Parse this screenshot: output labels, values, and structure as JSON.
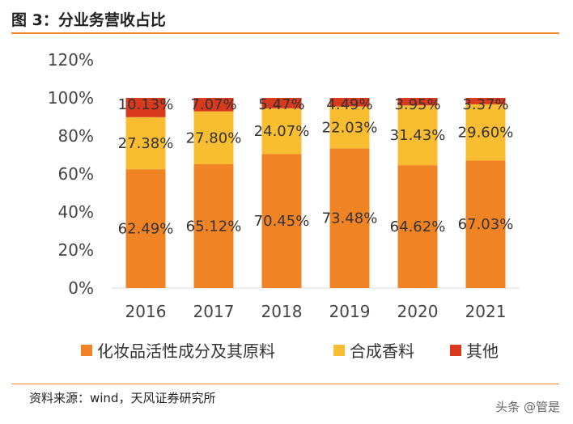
{
  "header": {
    "title": "图 3：分业务营收占比"
  },
  "footer": {
    "source": "资料来源：wind，天风证券研究所",
    "watermark": "头条 @管是"
  },
  "colors": {
    "accent": "#ef8a2c",
    "gridline": "#d9d9d9"
  },
  "chart_data": {
    "type": "bar",
    "stacked": true,
    "categories": [
      "2016",
      "2017",
      "2018",
      "2019",
      "2020",
      "2021"
    ],
    "y_ticks": [
      "0%",
      "20%",
      "40%",
      "60%",
      "80%",
      "100%",
      "120%"
    ],
    "ylim": [
      0,
      120
    ],
    "legend_position": "bottom",
    "series": [
      {
        "name": "化妆品活性成分及其原料",
        "color": "#f08424",
        "values": [
          62.49,
          65.12,
          70.45,
          73.48,
          64.62,
          67.03
        ],
        "labels": [
          "62.49%",
          "65.12%",
          "70.45%",
          "73.48%",
          "64.62%",
          "67.03%"
        ]
      },
      {
        "name": "合成香料",
        "color": "#f8bd30",
        "values": [
          27.38,
          27.8,
          24.07,
          22.03,
          31.43,
          29.6
        ],
        "labels": [
          "27.38%",
          "27.80%",
          "24.07%",
          "22.03%",
          "31.43%",
          "29.60%"
        ]
      },
      {
        "name": "其他",
        "color": "#d9391c",
        "values": [
          10.13,
          7.07,
          5.47,
          4.49,
          3.95,
          3.37
        ],
        "labels": [
          "10.13%",
          "7.07%",
          "5.47%",
          "4.49%",
          "3.95%",
          "3.37%"
        ]
      }
    ]
  }
}
